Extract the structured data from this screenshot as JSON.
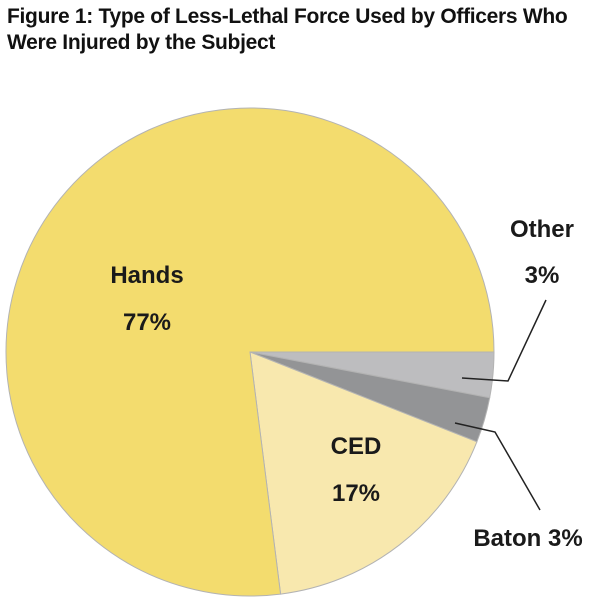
{
  "title": "Figure 1: Type of Less-Lethal Force Used by Officers Who Were Injured by the Subject",
  "chart_data": {
    "type": "pie",
    "title": "Figure 1: Type of Less-Lethal Force Used by Officers Who Were Injured by the Subject",
    "start": "right",
    "direction": "clockwise-from-right",
    "slices": [
      {
        "name": "Other",
        "value": 3,
        "label": "3%",
        "color": "#bdbdbf"
      },
      {
        "name": "Baton",
        "value": 3,
        "label": "3%",
        "color": "#939496"
      },
      {
        "name": "CED",
        "value": 17,
        "label": "17%",
        "color": "#f8e8ae"
      },
      {
        "name": "Hands",
        "value": 77,
        "label": "77%",
        "color": "#f3dc6e"
      }
    ],
    "labels": {
      "hands": {
        "name": "Hands",
        "pct": "77%"
      },
      "ced": {
        "name": "CED",
        "pct": "17%"
      },
      "other": {
        "name": "Other",
        "pct": "3%"
      },
      "baton": {
        "text": "Baton 3%"
      }
    }
  }
}
